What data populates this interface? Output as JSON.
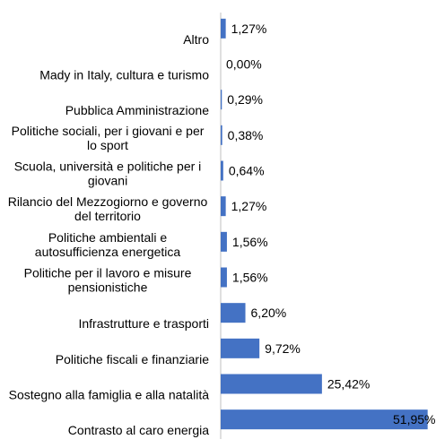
{
  "chart_data": {
    "type": "bar",
    "orientation": "horizontal",
    "categories": [
      "Altro",
      "Mady in Italy, cultura e turismo",
      "Pubblica Amministrazione",
      "Politiche sociali, per i giovani e per lo sport",
      "Scuola, università e politiche per i giovani",
      "Rilancio del Mezzogiorno e governo del territorio",
      "Politiche ambientali e autosufficienza energetica",
      "Politiche per il lavoro e misure pensionistiche",
      "Infrastrutture e trasporti",
      "Politiche fiscali e finanziarie",
      "Sostegno alla famiglia e alla natalità",
      "Contrasto al caro energia"
    ],
    "values": [
      1.27,
      0.0,
      0.29,
      0.38,
      0.64,
      1.27,
      1.56,
      1.56,
      6.2,
      9.72,
      25.42,
      51.95
    ],
    "value_labels": [
      "1,27%",
      "0,00%",
      "0,29%",
      "0,38%",
      "0,64%",
      "1,27%",
      "1,56%",
      "1,56%",
      "6,20%",
      "9,72%",
      "25,42%",
      "51,95%"
    ],
    "bar_color": "#4472c4",
    "axis_color": "#bfbfbf",
    "grid": false,
    "legend": "none"
  }
}
